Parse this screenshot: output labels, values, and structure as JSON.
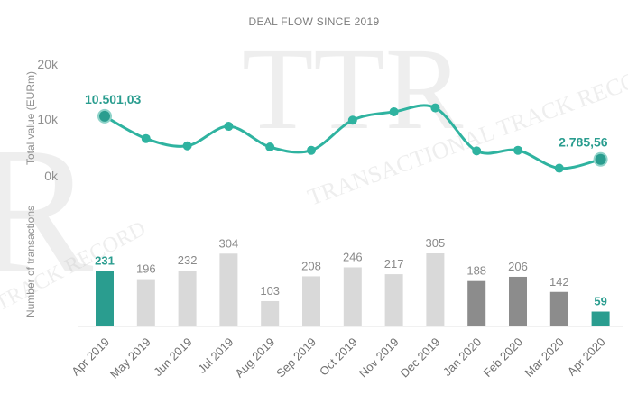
{
  "chart_data": [
    {
      "type": "line",
      "title": "DEAL FLOW SINCE 2019",
      "ylabel": "Total value (EURm)",
      "yticks": [
        "20k",
        "10k",
        "0k"
      ],
      "ylim": [
        0,
        20000
      ],
      "x": [
        "Apr 2019",
        "May 2019",
        "Jun 2019",
        "Jul 2019",
        "Aug 2019",
        "Sep 2019",
        "Oct 2019",
        "Nov 2019",
        "Dec 2019",
        "Jan 2020",
        "Feb 2020",
        "Mar 2020",
        "Apr 2020"
      ],
      "values": [
        10501.03,
        6500,
        5200,
        8700,
        5000,
        4400,
        9800,
        11300,
        12000,
        4300,
        4400,
        1200,
        2785.56
      ],
      "point_labels": [
        "10.501,03",
        "",
        "",
        "",
        "",
        "",
        "",
        "",
        "",
        "",
        "",
        "",
        "2.785,56"
      ],
      "color": "#2fb3a0"
    },
    {
      "type": "bar",
      "ylabel": "Number of transactions",
      "categories": [
        "Apr 2019",
        "May 2019",
        "Jun 2019",
        "Jul 2019",
        "Aug 2019",
        "Sep 2019",
        "Oct 2019",
        "Nov 2019",
        "Dec 2019",
        "Jan 2020",
        "Feb 2020",
        "Mar 2020",
        "Apr 2020"
      ],
      "values": [
        231,
        196,
        232,
        304,
        103,
        208,
        246,
        217,
        305,
        188,
        206,
        142,
        59
      ],
      "labels": [
        "231",
        "196",
        "232",
        "304",
        "103",
        "208",
        "246",
        "217",
        "305",
        "188",
        "206",
        "142",
        "59"
      ],
      "colors": [
        "#2a9d8f",
        "#d9d9d9",
        "#d9d9d9",
        "#d9d9d9",
        "#d9d9d9",
        "#d9d9d9",
        "#d9d9d9",
        "#d9d9d9",
        "#d9d9d9",
        "#8c8c8c",
        "#8c8c8c",
        "#8c8c8c",
        "#2a9d8f"
      ],
      "highlight": [
        true,
        false,
        false,
        false,
        false,
        false,
        false,
        false,
        false,
        false,
        false,
        false,
        true
      ]
    }
  ],
  "watermark": {
    "letters": "TTR",
    "arc_text": "TRANSACTIONAL TRACK RECORD",
    "left_text": "TRACK RECORD"
  }
}
